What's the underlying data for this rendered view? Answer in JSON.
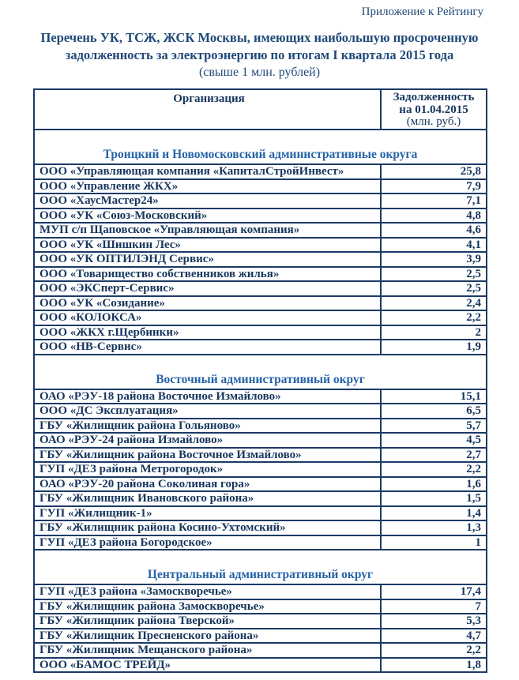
{
  "page": {
    "annotation": "Приложение к Рейтингу",
    "title_line1": "Перечень УК, ТСЖ, ЖСК Москвы, имеющих наибольшую просроченную",
    "title_line2": "задолженность за электроэнергию по итогам I квартала 2015 года",
    "subtitle": "(свыше 1 млн. рублей)"
  },
  "colors": {
    "heading_text": "#1f4978",
    "table_text": "#17365d",
    "table_border": "#1c3a66",
    "section_title_text": "#2563a8"
  },
  "table": {
    "header": {
      "org_label": "Организация",
      "debt_line1": "Задолженность",
      "debt_line2": "на 01.04.2015",
      "debt_line3": "(млн. руб.)"
    },
    "sections": [
      {
        "title": "Троицкий и Новомосковский административные округа",
        "rows": [
          {
            "org": "ООО «Управляющая компания «КапиталСтройИнвест»",
            "value": "25,8"
          },
          {
            "org": "ООО «Управление ЖКХ»",
            "value": "7,9"
          },
          {
            "org": "ООО «ХаусМастер24»",
            "value": "7,1"
          },
          {
            "org": "ООО «УК «Союз-Московский»",
            "value": "4,8"
          },
          {
            "org": "МУП с/п Щаповское «Управляющая компания»",
            "value": "4,6"
          },
          {
            "org": "ООО «УК «Шишкин Лес»",
            "value": "4,1"
          },
          {
            "org": "ООО «УК ОПТИЛЭНД Сервис»",
            "value": "3,9"
          },
          {
            "org": "ООО «Товарищество собственников жилья»",
            "value": "2,5"
          },
          {
            "org": "ООО «ЭКСперт-Сервис»",
            "value": "2,5"
          },
          {
            "org": "ООО «УК «Созидание»",
            "value": "2,4"
          },
          {
            "org": "ООО «КОЛОКСА»",
            "value": "2,2"
          },
          {
            "org": "ООО «ЖКХ г.Щербинки»",
            "value": "2"
          },
          {
            "org": "ООО «НВ-Сервис»",
            "value": "1,9"
          }
        ]
      },
      {
        "title": "Восточный административный округ",
        "rows": [
          {
            "org": "ОАО «РЭУ-18 района Восточное Измайлово»",
            "value": "15,1"
          },
          {
            "org": "ООО «ДС Эксплуатация»",
            "value": "6,5"
          },
          {
            "org": "ГБУ «Жилищник района Гольяново»",
            "value": "5,7"
          },
          {
            "org": "ОАО «РЭУ-24 района Измайлово»",
            "value": "4,5"
          },
          {
            "org": "ГБУ «Жилищник района Восточное Измайлово»",
            "value": "2,7"
          },
          {
            "org": "ГУП «ДЕЗ района Метрогородок»",
            "value": "2,2"
          },
          {
            "org": "ОАО «РЭУ-20 района Соколиная гора»",
            "value": "1,6"
          },
          {
            "org": "ГБУ «Жилищник Ивановского района»",
            "value": "1,5"
          },
          {
            "org": "ГУП «Жилищник-1»",
            "value": "1,4"
          },
          {
            "org": "ГБУ «Жилищник района Косино-Ухтомский»",
            "value": "1,3"
          },
          {
            "org": "ГУП «ДЕЗ района Богородское»",
            "value": "1"
          }
        ]
      },
      {
        "title": "Центральный административный округ",
        "rows": [
          {
            "org": "ГУП «ДЕЗ района «Замоскворечье»",
            "value": "17,4"
          },
          {
            "org": "ГБУ «Жилищник района Замоскворечье»",
            "value": "7"
          },
          {
            "org": "ГБУ «Жилищник района Тверской»",
            "value": "5,3"
          },
          {
            "org": "ГБУ «Жилищник Пресненского района»",
            "value": "4,7"
          },
          {
            "org": "ГБУ «Жилищник Мещанского района»",
            "value": "2,2"
          },
          {
            "org": "ООО «БАМОС ТРЕЙД»",
            "value": "1,8"
          }
        ]
      }
    ]
  }
}
